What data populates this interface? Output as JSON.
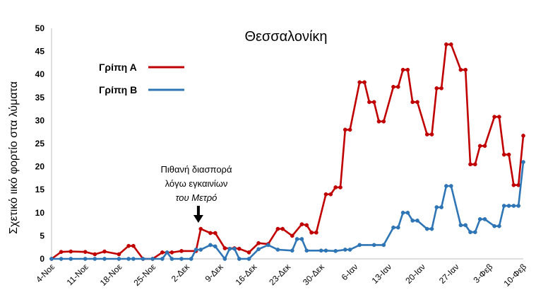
{
  "chart_data": {
    "type": "line",
    "title": "Θεσσαλονίκη",
    "ylabel": "Σχετικό ιικό φορτίο στα λύματα",
    "xlabel": "",
    "ylim": [
      0,
      50
    ],
    "yticks": [
      0,
      5,
      10,
      15,
      20,
      25,
      30,
      35,
      40,
      45,
      50
    ],
    "x_tick_labels": [
      "4-Νοε",
      "11-Νοε",
      "18-Νοε",
      "25-Νοε",
      "2-Δεκ",
      "9-Δεκ",
      "16-Δεκ",
      "23-Δεκ",
      "30-Δεκ",
      "6-Ιαν",
      "13-Ιαν",
      "20-Ιαν",
      "27-Ιαν",
      "3-Φεβ",
      "10-Φεβ"
    ],
    "x_range_days": [
      0,
      98
    ],
    "legend_position": "top-left",
    "grid": false,
    "annotation": {
      "lines": [
        "Πιθανή διασπορά",
        "λόγω εγκαινίων",
        "του Μετρό"
      ],
      "italic_line": 2,
      "day": 30.5
    },
    "series": [
      {
        "name": "Γρίπη Α",
        "color": "#c00000",
        "points": [
          [
            0,
            0
          ],
          [
            2,
            1.5
          ],
          [
            4,
            1.6
          ],
          [
            7,
            1.5
          ],
          [
            9,
            1.0
          ],
          [
            11,
            1.6
          ],
          [
            14,
            1.0
          ],
          [
            16,
            2.8
          ],
          [
            17,
            2.8
          ],
          [
            19,
            0.0
          ],
          [
            21,
            0.0
          ],
          [
            23,
            1.4
          ],
          [
            25,
            1.4
          ],
          [
            27,
            1.7
          ],
          [
            30,
            1.7
          ],
          [
            31,
            6.5
          ],
          [
            33,
            5.6
          ],
          [
            34,
            5.6
          ],
          [
            36,
            2.3
          ],
          [
            38,
            2.3
          ],
          [
            39,
            2.2
          ],
          [
            41,
            1.4
          ],
          [
            43,
            3.4
          ],
          [
            45,
            3.2
          ],
          [
            47,
            6.5
          ],
          [
            48,
            6.5
          ],
          [
            50,
            5.0
          ],
          [
            52,
            7.5
          ],
          [
            53,
            7.3
          ],
          [
            54,
            5.7
          ],
          [
            55,
            5.7
          ],
          [
            57,
            14.0
          ],
          [
            58,
            14.0
          ],
          [
            59,
            15.5
          ],
          [
            60,
            15.5
          ],
          [
            61,
            28.0
          ],
          [
            62,
            28.0
          ],
          [
            64,
            38.3
          ],
          [
            65,
            38.3
          ],
          [
            66,
            34.0
          ],
          [
            67,
            34.0
          ],
          [
            68,
            29.8
          ],
          [
            69,
            29.8
          ],
          [
            71,
            37.3
          ],
          [
            72,
            37.3
          ],
          [
            73,
            41.0
          ],
          [
            74,
            41.0
          ],
          [
            75,
            34.0
          ],
          [
            76,
            34.0
          ],
          [
            78,
            27.0
          ],
          [
            79,
            27.0
          ],
          [
            80,
            37.0
          ],
          [
            81,
            37.0
          ],
          [
            82,
            46.5
          ],
          [
            83,
            46.5
          ],
          [
            85,
            41.0
          ],
          [
            86,
            41.0
          ],
          [
            87,
            20.5
          ],
          [
            88,
            20.5
          ],
          [
            89,
            24.5
          ],
          [
            90,
            24.5
          ],
          [
            92,
            30.8
          ],
          [
            93,
            30.8
          ],
          [
            94,
            22.6
          ],
          [
            95,
            22.6
          ],
          [
            96,
            16.0
          ],
          [
            97,
            16.0
          ],
          [
            98,
            26.7
          ]
        ]
      },
      {
        "name": "Γρίπη Β",
        "color": "#2e75b6",
        "points": [
          [
            0,
            0
          ],
          [
            2,
            0
          ],
          [
            4,
            0
          ],
          [
            7,
            0
          ],
          [
            9,
            0
          ],
          [
            11,
            0
          ],
          [
            14,
            0
          ],
          [
            16,
            0
          ],
          [
            17,
            0
          ],
          [
            19,
            0
          ],
          [
            21,
            0
          ],
          [
            23,
            0
          ],
          [
            24,
            1.4
          ],
          [
            25,
            0
          ],
          [
            27,
            0
          ],
          [
            29,
            0
          ],
          [
            30,
            2.0
          ],
          [
            31,
            2.0
          ],
          [
            33,
            3.0
          ],
          [
            34,
            2.7
          ],
          [
            36,
            0
          ],
          [
            37,
            2.2
          ],
          [
            38,
            2.2
          ],
          [
            39,
            0
          ],
          [
            41,
            0
          ],
          [
            43,
            2.1
          ],
          [
            45,
            3.0
          ],
          [
            47,
            2.0
          ],
          [
            50,
            1.8
          ],
          [
            51,
            4.3
          ],
          [
            52,
            4.3
          ],
          [
            53,
            1.8
          ],
          [
            56,
            1.8
          ],
          [
            57,
            1.8
          ],
          [
            59,
            1.7
          ],
          [
            61,
            2.0
          ],
          [
            62,
            2.0
          ],
          [
            64,
            3.0
          ],
          [
            67,
            3.0
          ],
          [
            69,
            3.0
          ],
          [
            71,
            6.8
          ],
          [
            72,
            6.8
          ],
          [
            73,
            10.0
          ],
          [
            74,
            10.0
          ],
          [
            75,
            8.3
          ],
          [
            76,
            8.3
          ],
          [
            78,
            6.5
          ],
          [
            79,
            6.5
          ],
          [
            80,
            11.2
          ],
          [
            81,
            11.2
          ],
          [
            82,
            15.8
          ],
          [
            83,
            15.8
          ],
          [
            85,
            7.3
          ],
          [
            86,
            7.3
          ],
          [
            87,
            5.8
          ],
          [
            88,
            5.8
          ],
          [
            89,
            8.6
          ],
          [
            90,
            8.6
          ],
          [
            92,
            7.1
          ],
          [
            93,
            7.1
          ],
          [
            94,
            11.5
          ],
          [
            95,
            11.5
          ],
          [
            96,
            11.5
          ],
          [
            97,
            11.5
          ],
          [
            98,
            21.0
          ]
        ]
      }
    ]
  }
}
